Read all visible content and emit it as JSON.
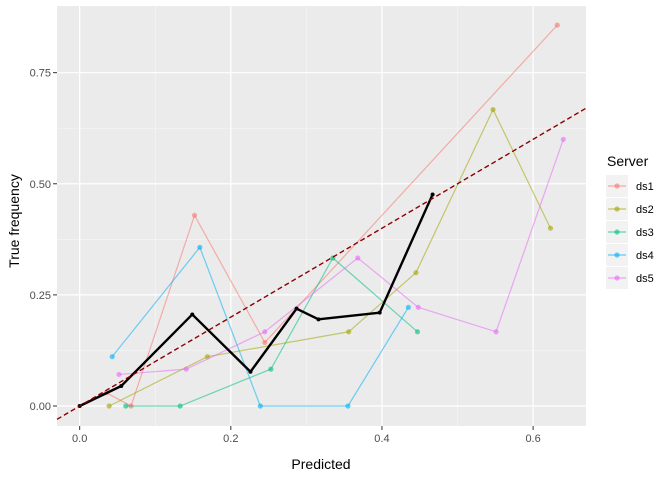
{
  "chart_data": {
    "type": "line",
    "xlabel": "Predicted",
    "ylabel": "True frequency",
    "xlim": [
      -0.03,
      0.67
    ],
    "ylim": [
      -0.045,
      0.9
    ],
    "x_ticks": [
      0.0,
      0.2,
      0.4,
      0.6
    ],
    "x_tick_labels": [
      "0.0",
      "0.2",
      "0.4",
      "0.6"
    ],
    "y_ticks": [
      0.0,
      0.25,
      0.5,
      0.75
    ],
    "y_tick_labels": [
      "0.00",
      "0.25",
      "0.50",
      "0.75"
    ],
    "grid": true,
    "legend": {
      "title": "Server",
      "placement": "right"
    },
    "series": [
      {
        "name": "ds1",
        "color": "#F8766D",
        "points": [
          [
            0.035,
            0.03
          ],
          [
            0.068,
            0.0
          ],
          [
            0.152,
            0.429
          ],
          [
            0.245,
            0.143
          ],
          [
            0.632,
            0.857
          ]
        ]
      },
      {
        "name": "ds2",
        "color": "#A3A500",
        "points": [
          [
            0.039,
            0.0
          ],
          [
            0.169,
            0.111
          ],
          [
            0.356,
            0.167
          ],
          [
            0.445,
            0.3
          ],
          [
            0.547,
            0.667
          ],
          [
            0.623,
            0.4
          ]
        ]
      },
      {
        "name": "ds3",
        "color": "#00BF7D",
        "points": [
          [
            0.061,
            0.0
          ],
          [
            0.133,
            0.0
          ],
          [
            0.253,
            0.083
          ],
          [
            0.335,
            0.333
          ],
          [
            0.447,
            0.167
          ]
        ]
      },
      {
        "name": "ds4",
        "color": "#00B0F6",
        "points": [
          [
            0.043,
            0.111
          ],
          [
            0.159,
            0.357
          ],
          [
            0.239,
            0.0
          ],
          [
            0.355,
            0.0
          ],
          [
            0.435,
            0.222
          ]
        ]
      },
      {
        "name": "ds5",
        "color": "#E76BF3",
        "points": [
          [
            0.052,
            0.071
          ],
          [
            0.141,
            0.083
          ],
          [
            0.245,
            0.167
          ],
          [
            0.368,
            0.333
          ],
          [
            0.448,
            0.222
          ],
          [
            0.551,
            0.167
          ],
          [
            0.64,
            0.6
          ]
        ]
      }
    ],
    "overall": {
      "color": "#000000",
      "points": [
        [
          0.0,
          0.0
        ],
        [
          0.055,
          0.045
        ],
        [
          0.149,
          0.206
        ],
        [
          0.226,
          0.077
        ],
        [
          0.287,
          0.219
        ],
        [
          0.316,
          0.195
        ],
        [
          0.397,
          0.21
        ],
        [
          0.467,
          0.476
        ]
      ]
    },
    "reference_line": {
      "slope": 1,
      "intercept": 0,
      "color": "#8B0000",
      "style": "dashed"
    }
  }
}
